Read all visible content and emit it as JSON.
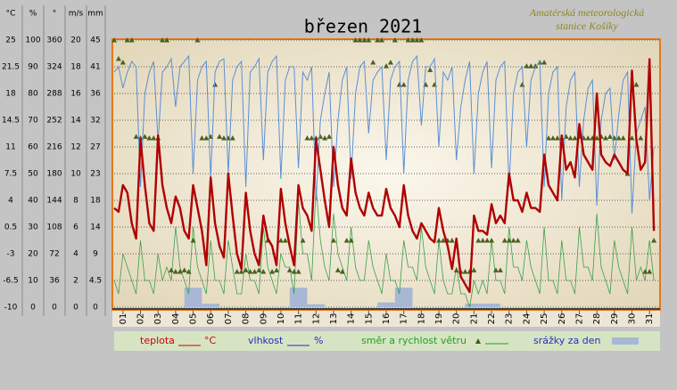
{
  "chart_data": {
    "type": "line",
    "title": "březen 2021",
    "credit": [
      "Amatérská meteorologická",
      "stanice Košíky"
    ],
    "axes": [
      {
        "label": "°C",
        "ylim": [
          -10,
          25
        ],
        "yticks": [
          -10,
          -6.5,
          -3,
          0.5,
          4,
          7.5,
          11,
          14.5,
          18,
          21.5,
          25
        ]
      },
      {
        "label": "%",
        "ylim": [
          0,
          100
        ],
        "yticks": [
          0,
          10,
          20,
          30,
          40,
          50,
          60,
          70,
          80,
          90,
          100
        ]
      },
      {
        "label": "°",
        "ylim": [
          0,
          360
        ],
        "yticks": [
          0,
          36,
          72,
          108,
          144,
          180,
          216,
          252,
          288,
          324,
          360
        ]
      },
      {
        "label": "m/s",
        "ylim": [
          0,
          20
        ],
        "yticks": [
          0,
          2,
          4,
          6,
          8,
          10,
          12,
          14,
          16,
          18,
          20
        ]
      },
      {
        "label": "mm",
        "ylim": [
          0,
          45
        ],
        "yticks": [
          0,
          4.5,
          9,
          {
            "value": 13.5,
            "label": "14"
          },
          18,
          {
            "value": 22.5,
            "label": "23"
          },
          27,
          {
            "value": 31.5,
            "label": "32"
          },
          36,
          {
            "value": 40.5,
            "label": "41"
          },
          45
        ]
      }
    ],
    "xlim": [
      1,
      32
    ],
    "xticks": [
      {
        "value": 1.5,
        "label": "01"
      },
      {
        "value": 2.5,
        "label": "02"
      },
      {
        "value": 3.5,
        "label": "03"
      },
      {
        "value": 4.5,
        "label": "04"
      },
      {
        "value": 5.5,
        "label": "05"
      },
      {
        "value": 6.5,
        "label": "06"
      },
      {
        "value": 7.5,
        "label": "07"
      },
      {
        "value": 8.5,
        "label": "08"
      },
      {
        "value": 9.5,
        "label": "09"
      },
      {
        "value": 10.5,
        "label": "10"
      },
      {
        "value": 11.5,
        "label": "11"
      },
      {
        "value": 12.5,
        "label": "12"
      },
      {
        "value": 13.5,
        "label": "13"
      },
      {
        "value": 14.5,
        "label": "14"
      },
      {
        "value": 15.5,
        "label": "15"
      },
      {
        "value": 16.5,
        "label": "16"
      },
      {
        "value": 17.5,
        "label": "17"
      },
      {
        "value": 18.5,
        "label": "18"
      },
      {
        "value": 19.5,
        "label": "19"
      },
      {
        "value": 20.5,
        "label": "20"
      },
      {
        "value": 21.5,
        "label": "21"
      },
      {
        "value": 22.5,
        "label": "22"
      },
      {
        "value": 23.5,
        "label": "23"
      },
      {
        "value": 24.5,
        "label": "24"
      },
      {
        "value": 25.5,
        "label": "25"
      },
      {
        "value": 26.5,
        "label": "26"
      },
      {
        "value": 27.5,
        "label": "27"
      },
      {
        "value": 28.5,
        "label": "28"
      },
      {
        "value": 29.5,
        "label": "29"
      },
      {
        "value": 30.5,
        "label": "30"
      },
      {
        "value": 31.5,
        "label": "31"
      }
    ],
    "grid": true,
    "x": [
      1,
      1.25,
      1.5,
      1.75,
      2,
      2.25,
      2.5,
      2.75,
      3,
      3.25,
      3.5,
      3.75,
      4,
      4.25,
      4.5,
      4.75,
      5,
      5.25,
      5.5,
      5.75,
      6,
      6.25,
      6.5,
      6.75,
      7,
      7.25,
      7.5,
      7.75,
      8,
      8.25,
      8.5,
      8.75,
      9,
      9.25,
      9.5,
      9.75,
      10,
      10.25,
      10.5,
      10.75,
      11,
      11.25,
      11.5,
      11.75,
      12,
      12.25,
      12.5,
      12.75,
      13,
      13.25,
      13.5,
      13.75,
      14,
      14.25,
      14.5,
      14.75,
      15,
      15.25,
      15.5,
      15.75,
      16,
      16.25,
      16.5,
      16.75,
      17,
      17.25,
      17.5,
      17.75,
      18,
      18.25,
      18.5,
      18.75,
      19,
      19.25,
      19.5,
      19.75,
      20,
      20.25,
      20.5,
      20.75,
      21,
      21.25,
      21.5,
      21.75,
      22,
      22.25,
      22.5,
      22.75,
      23,
      23.25,
      23.5,
      23.75,
      24,
      24.25,
      24.5,
      24.75,
      25,
      25.25,
      25.5,
      25.75,
      26,
      26.25,
      26.5,
      26.75,
      27,
      27.25,
      27.5,
      27.75,
      28,
      28.25,
      28.5,
      28.75,
      29,
      29.25,
      29.5,
      29.75,
      30,
      30.25,
      30.5,
      30.75,
      31,
      31.25,
      31.5,
      31.75
    ],
    "series": [
      {
        "name": "teplota",
        "color": "#b00000",
        "axis": 0,
        "values": [
          3,
          2.5,
          6,
          5,
          1,
          -1,
          12,
          6,
          1,
          0,
          12.5,
          6,
          3,
          1,
          4.5,
          3,
          0,
          -1,
          6,
          3,
          0,
          -4.5,
          7,
          1,
          -2,
          -3.5,
          7.5,
          2,
          -3,
          -5,
          5,
          0,
          -3,
          -4.5,
          2,
          -1,
          -2,
          -4.5,
          5.5,
          1,
          -2,
          -4.5,
          6,
          3,
          2,
          0,
          12,
          8,
          4,
          0.5,
          11,
          6,
          3,
          2,
          9.5,
          5,
          3,
          2,
          5,
          3,
          2,
          2,
          5.5,
          3,
          2,
          0.5,
          6,
          2,
          0,
          -1,
          1,
          0,
          -1,
          -1.5,
          3,
          0,
          -2,
          -5,
          -1,
          -6,
          -7,
          -8,
          2,
          0,
          0,
          -0.5,
          3.5,
          1,
          2,
          1,
          7.5,
          4,
          4,
          2.5,
          5,
          3,
          3,
          2.5,
          10,
          6,
          5,
          4,
          12.5,
          8,
          9,
          7,
          14,
          10,
          9,
          8,
          18,
          10,
          9,
          8.5,
          10,
          9,
          8,
          7.5,
          21,
          12,
          8,
          9,
          22.5,
          0
        ]
      },
      {
        "name": "vlhkost",
        "color": "#5b8fd6",
        "axis": 1,
        "values": [
          88,
          90,
          82,
          88,
          92,
          90,
          45,
          80,
          88,
          92,
          62,
          88,
          90,
          93,
          75,
          90,
          92,
          94,
          50,
          85,
          90,
          92,
          48,
          88,
          92,
          93,
          50,
          85,
          90,
          92,
          45,
          88,
          90,
          93,
          55,
          88,
          92,
          94,
          48,
          85,
          90,
          90,
          52,
          88,
          85,
          90,
          40,
          70,
          80,
          88,
          45,
          70,
          85,
          90,
          48,
          80,
          90,
          92,
          65,
          85,
          88,
          90,
          55,
          85,
          90,
          92,
          50,
          85,
          92,
          94,
          68,
          90,
          90,
          93,
          60,
          88,
          85,
          90,
          55,
          75,
          85,
          92,
          50,
          80,
          88,
          92,
          52,
          85,
          90,
          92,
          45,
          80,
          88,
          90,
          60,
          85,
          90,
          92,
          45,
          80,
          88,
          90,
          40,
          75,
          85,
          88,
          45,
          70,
          82,
          85,
          38,
          70,
          80,
          82,
          55,
          72,
          85,
          88,
          35,
          65,
          70,
          75,
          40,
          60
        ]
      },
      {
        "name": "směr a rychlost větru",
        "color": "#3aa04a",
        "marker_color": "#4a6020",
        "axis": 3,
        "direction_axis": 2,
        "values": [
          2,
          1,
          4,
          3,
          2,
          1,
          5,
          2,
          2,
          1,
          4,
          2,
          3,
          2,
          6,
          3,
          2,
          1,
          6,
          3,
          2,
          1,
          5,
          2,
          2,
          1,
          5,
          3,
          1,
          1,
          4,
          2,
          2,
          1,
          6,
          3,
          2,
          1,
          4,
          3,
          3,
          1,
          8,
          4,
          4,
          2,
          9,
          5,
          3,
          2,
          7,
          4,
          3,
          2,
          6,
          3,
          2,
          2,
          5,
          3,
          2,
          1,
          4,
          2,
          2,
          1,
          5,
          3,
          3,
          2,
          6,
          3,
          2,
          1,
          5,
          2,
          1,
          1,
          3,
          1,
          1,
          0,
          2,
          1,
          2,
          1,
          5,
          2,
          2,
          1,
          6,
          3,
          3,
          2,
          5,
          3,
          2,
          1,
          6,
          2,
          2,
          1,
          5,
          2,
          2,
          1,
          6,
          3,
          3,
          2,
          7,
          3,
          2,
          1,
          5,
          3,
          2,
          1,
          6,
          2,
          3,
          2,
          5,
          2
        ],
        "direction": [
          360,
          335,
          330,
          360,
          360,
          230,
          228,
          230,
          228,
          228,
          228,
          360,
          360,
          50,
          48,
          48,
          50,
          48,
          90,
          360,
          228,
          228,
          230,
          300,
          230,
          228,
          228,
          228,
          48,
          48,
          50,
          48,
          48,
          50,
          48,
          90,
          48,
          50,
          90,
          90,
          50,
          48,
          48,
          90,
          228,
          228,
          228,
          230,
          228,
          230,
          90,
          50,
          48,
          90,
          90,
          360,
          360,
          360,
          360,
          330,
          360,
          360,
          325,
          330,
          360,
          300,
          300,
          360,
          360,
          360,
          360,
          300,
          320,
          300,
          90,
          90,
          90,
          90,
          50,
          48,
          48,
          48,
          50,
          90,
          90,
          90,
          90,
          50,
          50,
          90,
          90,
          90,
          90,
          300,
          325,
          325,
          325,
          330,
          330,
          228,
          228,
          228,
          228,
          230,
          228,
          228,
          230,
          228,
          228,
          228,
          228,
          230,
          228,
          230,
          228,
          228,
          228,
          180,
          228,
          300,
          228,
          48,
          48,
          90
        ]
      },
      {
        "name": "srážky za den",
        "color": "#a8b8d4",
        "axis": 4,
        "x": [
          1,
          2,
          3,
          4,
          5,
          6,
          7,
          8,
          9,
          10,
          11,
          12,
          13,
          14,
          15,
          16,
          17,
          18,
          19,
          20,
          21,
          22,
          23,
          24,
          25,
          26,
          27,
          28,
          29,
          30,
          31
        ],
        "values": [
          0,
          0,
          0,
          0,
          3.3,
          0.6,
          0,
          0,
          0,
          0,
          3.3,
          0.5,
          0,
          0,
          0,
          0.8,
          3.3,
          0,
          0,
          0,
          0.6,
          0.6,
          0,
          0,
          0,
          0,
          0,
          0,
          0,
          0,
          0
        ]
      }
    ]
  }
}
